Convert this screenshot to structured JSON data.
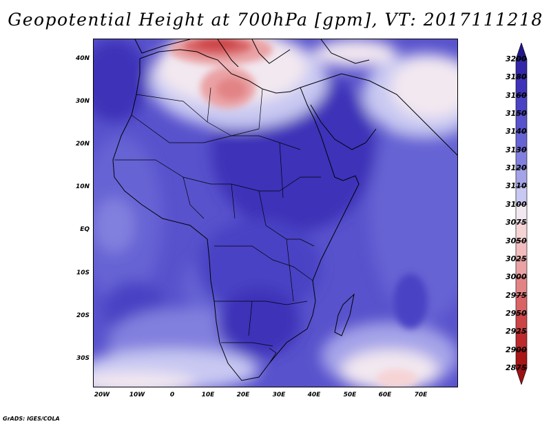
{
  "title": "Geopotential Height at 700hPa [gpm], VT: 2017111218",
  "credit": "GrADS: IGES/COLA",
  "map": {
    "lon_range": [
      -23,
      80
    ],
    "lat_range": [
      -37,
      45
    ],
    "lat_ticks": [
      {
        "value": 40,
        "label": "40N"
      },
      {
        "value": 30,
        "label": "30N"
      },
      {
        "value": 20,
        "label": "20N"
      },
      {
        "value": 10,
        "label": "10N"
      },
      {
        "value": 0,
        "label": "EQ"
      },
      {
        "value": -10,
        "label": "10S"
      },
      {
        "value": -20,
        "label": "20S"
      },
      {
        "value": -30,
        "label": "30S"
      }
    ],
    "lon_ticks": [
      {
        "value": -20,
        "label": "20W"
      },
      {
        "value": -10,
        "label": "10W"
      },
      {
        "value": 0,
        "label": "0"
      },
      {
        "value": 10,
        "label": "10E"
      },
      {
        "value": 20,
        "label": "20E"
      },
      {
        "value": 30,
        "label": "30E"
      },
      {
        "value": 40,
        "label": "40E"
      },
      {
        "value": 50,
        "label": "50E"
      },
      {
        "value": 60,
        "label": "60E"
      },
      {
        "value": 70,
        "label": "70E"
      }
    ]
  },
  "colorbar": {
    "levels": [
      {
        "value": "3200",
        "color": "#2a1f94"
      },
      {
        "value": "3180",
        "color": "#3428a8"
      },
      {
        "value": "3160",
        "color": "#3e33b8"
      },
      {
        "value": "3150",
        "color": "#4a42c4"
      },
      {
        "value": "3140",
        "color": "#5852cc"
      },
      {
        "value": "3130",
        "color": "#6663d4"
      },
      {
        "value": "3120",
        "color": "#8280de"
      },
      {
        "value": "3110",
        "color": "#a4a3e8"
      },
      {
        "value": "3100",
        "color": "#c8c8f2"
      },
      {
        "value": "3075",
        "color": "#f2e8f0"
      },
      {
        "value": "3050",
        "color": "#f6d4d6"
      },
      {
        "value": "3025",
        "color": "#f2bcbe"
      },
      {
        "value": "3000",
        "color": "#eaa2a4"
      },
      {
        "value": "2975",
        "color": "#e28486"
      },
      {
        "value": "2950",
        "color": "#d86466"
      },
      {
        "value": "2925",
        "color": "#cc4446"
      },
      {
        "value": "2900",
        "color": "#bc2a2c"
      },
      {
        "value": "2875",
        "color": "#a81618"
      }
    ],
    "top_color": "#24188a",
    "bottom_color": "#9c1214"
  }
}
